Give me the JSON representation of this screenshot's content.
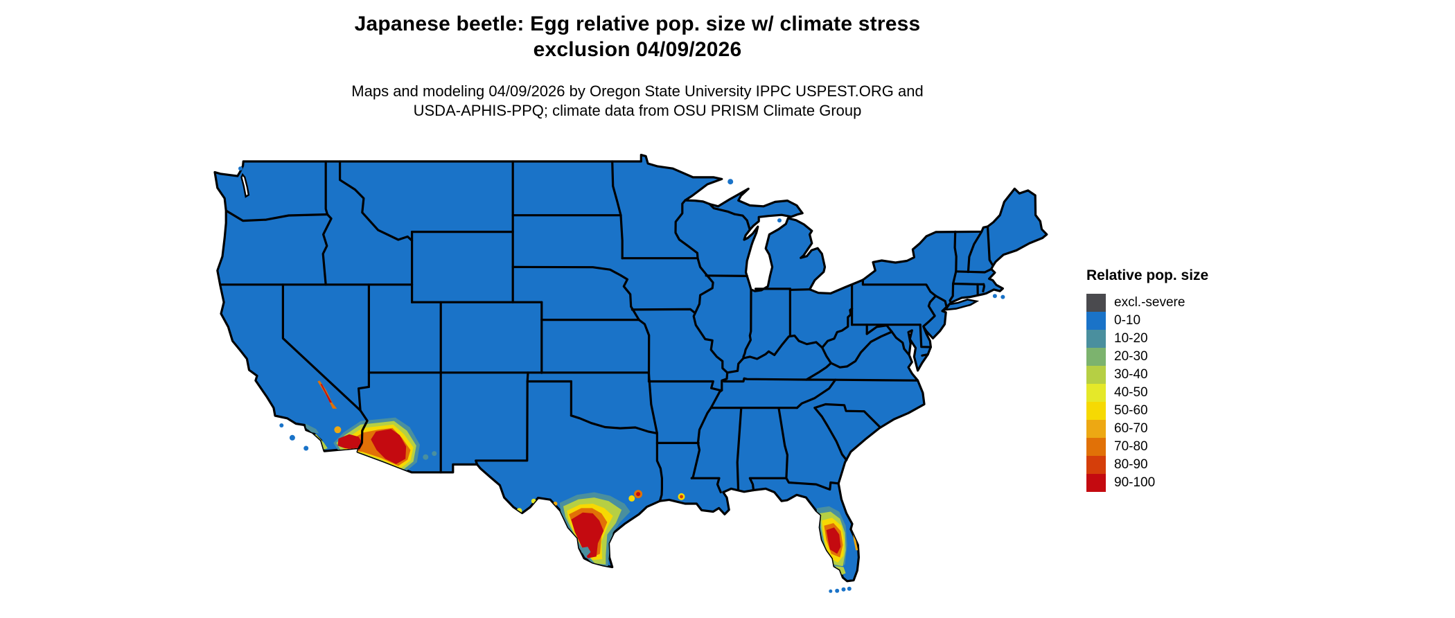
{
  "header": {
    "title_line1": "Japanese beetle: Egg relative pop. size w/ climate stress",
    "title_line2": "exclusion 04/09/2026",
    "subtitle_line1": "Maps and modeling 04/09/2026 by Oregon State University IPPC USPEST.ORG and",
    "subtitle_line2": "USDA-APHIS-PPQ; climate data from OSU PRISM Climate Group"
  },
  "legend": {
    "title": "Relative pop. size",
    "items": [
      {
        "label": "excl.-severe",
        "color": "#4a4a4e"
      },
      {
        "label": "0-10",
        "color": "#1a73c8"
      },
      {
        "label": "10-20",
        "color": "#4a8f9e"
      },
      {
        "label": "20-30",
        "color": "#7cb36e"
      },
      {
        "label": "30-40",
        "color": "#b6cf44"
      },
      {
        "label": "40-50",
        "color": "#e5e829"
      },
      {
        "label": "50-60",
        "color": "#f6d903"
      },
      {
        "label": "60-70",
        "color": "#eda813"
      },
      {
        "label": "70-80",
        "color": "#e17107"
      },
      {
        "label": "80-90",
        "color": "#d53e0a"
      },
      {
        "label": "90-100",
        "color": "#c40a10"
      }
    ]
  },
  "map": {
    "base_fill": "#1a73c8",
    "border_color": "#000000",
    "background": "#ffffff",
    "hotspot_regions": [
      "Southern California and Arizona",
      "South Texas",
      "Central and South Florida"
    ]
  }
}
